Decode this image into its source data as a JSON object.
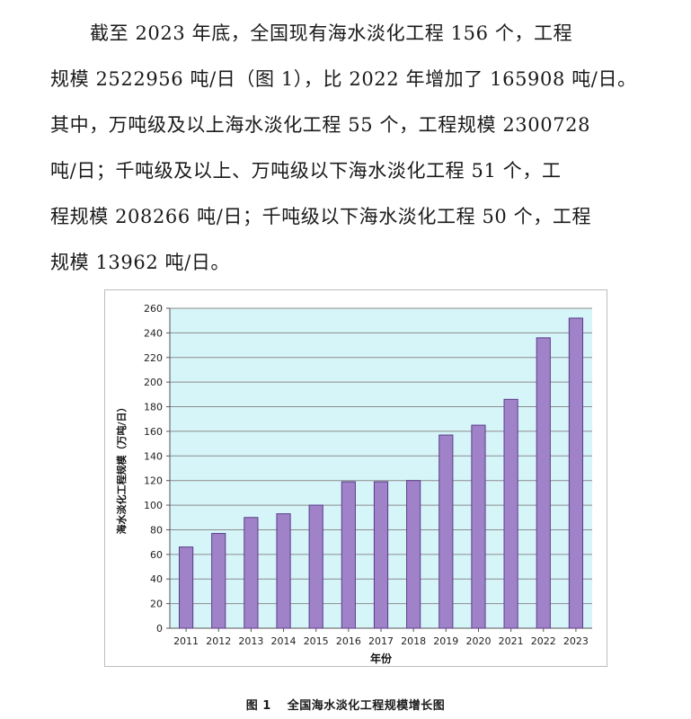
{
  "paragraph": {
    "lines": [
      "截至 2023 年底，全国现有海水淡化工程 156 个，工程",
      "规模 2522956 吨/日（图 1），比 2022 年增加了 165908 吨/日。",
      "其中，万吨级及以上海水淡化工程 55 个，工程规模 2300728",
      "吨/日；千吨级及以上、万吨级以下海水淡化工程 51 个，工",
      "程规模 208266 吨/日；千吨级以下海水淡化工程 50 个，工程",
      "规模 13962 吨/日。"
    ]
  },
  "caption": {
    "number": "图 1",
    "text": "全国海水淡化工程规模增长图"
  },
  "chart_data": {
    "type": "bar",
    "categories": [
      "2011",
      "2012",
      "2013",
      "2014",
      "2015",
      "2016",
      "2017",
      "2018",
      "2019",
      "2020",
      "2021",
      "2022",
      "2023"
    ],
    "values": [
      66,
      77,
      90,
      93,
      100,
      119,
      119,
      120,
      157,
      165,
      186,
      236,
      252
    ],
    "xlabel": "年份",
    "ylabel": "海水淡化工程规模（万吨/日）",
    "ylim": [
      0,
      260
    ],
    "yticks": [
      0,
      20,
      40,
      60,
      80,
      100,
      120,
      140,
      160,
      180,
      200,
      220,
      240,
      260
    ],
    "grid": true,
    "legend": "none",
    "colors": {
      "plot_background": "#d6f5f9",
      "bar_fill": "#a082c8",
      "bar_edge": "#5a3d8a",
      "grid": "#8c8c8c"
    }
  }
}
